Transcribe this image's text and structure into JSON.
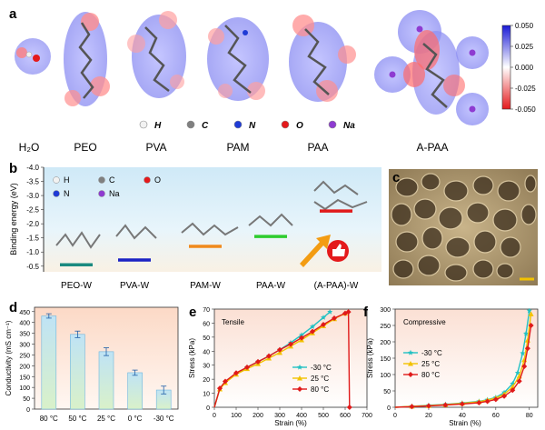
{
  "panel_a": {
    "letter": "a",
    "molecules": [
      "H₂O",
      "PEO",
      "PVA",
      "PAM",
      "PAA",
      "A-PAA"
    ],
    "atom_legend": [
      {
        "label": "H",
        "color": "#f2f2f2"
      },
      {
        "label": "C",
        "color": "#808080"
      },
      {
        "label": "N",
        "color": "#1f3bd6"
      },
      {
        "label": "O",
        "color": "#e41a1c"
      },
      {
        "label": "Na",
        "color": "#8e3bd1"
      }
    ],
    "colorbar_ticks": [
      "0.050",
      "0.025",
      "0.000",
      "-0.025",
      "-0.050"
    ]
  },
  "panel_b": {
    "letter": "b",
    "ylabel": "Binding energy (eV)",
    "ytick_labels": [
      "-4.0",
      "-3.5",
      "-3.0",
      "-2.5",
      "-2.0",
      "-1.5",
      "-1.0",
      "-0.5"
    ],
    "atom_legend": [
      "H",
      "C",
      "O",
      "N",
      "Na"
    ],
    "categories": [
      "PEO-W",
      "PVA-W",
      "PAM-W",
      "PAA-W",
      "(A-PAA)-W"
    ]
  },
  "panel_c": {
    "letter": "c"
  },
  "panel_d": {
    "letter": "d",
    "ylabel": "Conductivity (mS cm⁻¹)",
    "ytick_labels": [
      "0",
      "50",
      "100",
      "150",
      "200",
      "250",
      "300",
      "350",
      "400",
      "450"
    ]
  },
  "panel_e": {
    "letter": "e",
    "tag": "Tensile",
    "ylabel": "Stress (kPa)",
    "xlabel": "Strain (%)",
    "ytick_labels": [
      "0",
      "10",
      "20",
      "30",
      "40",
      "50",
      "60",
      "70"
    ],
    "xtick_labels": [
      "0",
      "100",
      "200",
      "300",
      "400",
      "500",
      "600",
      "700"
    ],
    "legend": [
      "-30 °C",
      "25 °C",
      "80 °C"
    ]
  },
  "panel_f": {
    "letter": "f",
    "tag": "Compressive",
    "ylabel": "Stress (kPa)",
    "xlabel": "Strain (%)",
    "ytick_labels": [
      "0",
      "50",
      "100",
      "150",
      "200",
      "250",
      "300"
    ],
    "xtick_labels": [
      "0",
      "20",
      "40",
      "60",
      "80"
    ],
    "legend": [
      "-30 °C",
      "25 °C",
      "80 °C"
    ]
  },
  "chart_data": [
    {
      "type": "bar",
      "panel": "b",
      "categories": [
        "PEO-W",
        "PVA-W",
        "PAM-W",
        "PAA-W",
        "(A-PAA)-W"
      ],
      "values": [
        -0.55,
        -0.72,
        -1.2,
        -1.55,
        -2.45
      ],
      "colors": [
        "#1a8a80",
        "#1b22c4",
        "#f08a1c",
        "#2ecc2e",
        "#e01a1a"
      ],
      "ylabel": "Binding energy (eV)",
      "ylim": [
        -4.0,
        -0.3
      ]
    },
    {
      "type": "bar",
      "panel": "d",
      "categories": [
        "80 °C",
        "50 °C",
        "25 °C",
        "0 °C",
        "-30 °C"
      ],
      "values": [
        430,
        345,
        265,
        168,
        88
      ],
      "errors": [
        10,
        15,
        18,
        12,
        18
      ],
      "ylabel": "Conductivity (mS cm⁻¹)",
      "ylim": [
        0,
        470
      ]
    },
    {
      "type": "line",
      "panel": "e",
      "xlabel": "Strain (%)",
      "ylabel": "Stress (kPa)",
      "xlim": [
        0,
        700
      ],
      "ylim": [
        0,
        70
      ],
      "series": [
        {
          "name": "-30 °C",
          "color": "#22c1c3",
          "marker": "star",
          "x": [
            0,
            25,
            50,
            100,
            150,
            200,
            250,
            300,
            350,
            400,
            450,
            500,
            530
          ],
          "y": [
            0,
            13,
            18,
            24,
            28.5,
            32.5,
            36.5,
            41,
            46,
            51.5,
            57.5,
            64,
            68
          ]
        },
        {
          "name": "25 °C",
          "color": "#f2c200",
          "marker": "triangle",
          "x": [
            0,
            25,
            50,
            100,
            150,
            200,
            250,
            300,
            350,
            400,
            450,
            500,
            550,
            600
          ],
          "y": [
            0,
            13,
            17.5,
            23.5,
            27.5,
            31,
            35,
            39,
            43.5,
            48,
            53,
            58,
            63,
            67
          ]
        },
        {
          "name": "80 °C",
          "color": "#e01a1a",
          "marker": "diamond",
          "x": [
            0,
            25,
            50,
            100,
            150,
            200,
            250,
            300,
            350,
            400,
            450,
            500,
            550,
            600,
            615,
            620
          ],
          "y": [
            0,
            13.5,
            18.5,
            24.5,
            28.5,
            32.5,
            36.5,
            41,
            45,
            49.5,
            54,
            59,
            63.5,
            67,
            68,
            0
          ]
        }
      ]
    },
    {
      "type": "line",
      "panel": "f",
      "xlabel": "Strain (%)",
      "ylabel": "Stress (kPa)",
      "xlim": [
        0,
        85
      ],
      "ylim": [
        0,
        300
      ],
      "series": [
        {
          "name": "-30 °C",
          "color": "#22c1c3",
          "marker": "star",
          "x": [
            0,
            10,
            20,
            30,
            40,
            50,
            55,
            60,
            65,
            70,
            73,
            76,
            78,
            80
          ],
          "y": [
            0,
            3,
            6,
            9,
            13,
            18,
            23,
            30,
            45,
            72,
            105,
            165,
            225,
            295
          ]
        },
        {
          "name": "25 °C",
          "color": "#f2c200",
          "marker": "triangle",
          "x": [
            0,
            10,
            20,
            30,
            40,
            50,
            55,
            60,
            65,
            70,
            74,
            77,
            79,
            81
          ],
          "y": [
            0,
            3,
            5,
            8,
            12,
            17,
            22,
            28,
            40,
            62,
            95,
            145,
            205,
            285
          ]
        },
        {
          "name": "80 °C",
          "color": "#e01a1a",
          "marker": "diamond",
          "x": [
            0,
            10,
            20,
            30,
            40,
            50,
            55,
            60,
            65,
            70,
            74,
            77,
            79,
            81
          ],
          "y": [
            0,
            2,
            4,
            7,
            10,
            14,
            18,
            24,
            34,
            52,
            80,
            125,
            180,
            250
          ]
        }
      ]
    }
  ]
}
